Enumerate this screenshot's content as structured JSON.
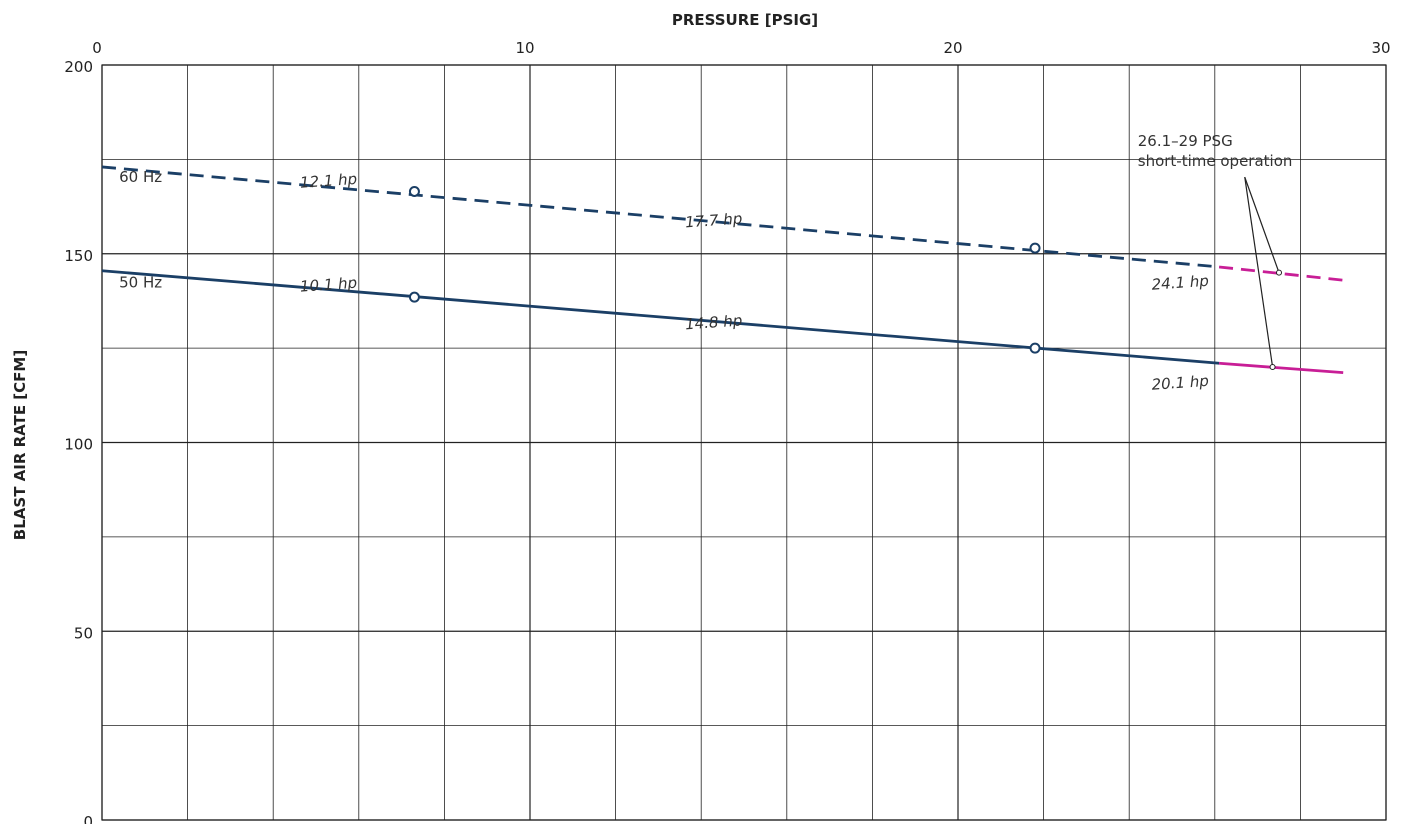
{
  "chart_data": {
    "type": "line",
    "title": "",
    "xlabel": "PRESSURE [PSIG]",
    "ylabel": "BLAST AIR RATE [CFM]",
    "xlim": [
      0,
      30
    ],
    "ylim": [
      0,
      200
    ],
    "x_ticks": [
      0,
      10,
      20,
      30
    ],
    "y_ticks": [
      0,
      50,
      100,
      150,
      200
    ],
    "x_axis_position": "top",
    "grid": true,
    "colors": {
      "primary": "#1b3f66",
      "short_time": "#c81e96",
      "grid": "#222222"
    },
    "series": [
      {
        "name": "60 Hz",
        "style": "dashed",
        "color": "#1b3f66",
        "points": [
          [
            0,
            173
          ],
          [
            26.1,
            146.5
          ]
        ],
        "short_time_points": [
          [
            26.1,
            146.5
          ],
          [
            29,
            143
          ]
        ],
        "markers": [
          [
            7.3,
            166.5
          ],
          [
            21.8,
            151.5
          ]
        ],
        "power_labels": [
          {
            "text": "12.1 hp",
            "x": 5.3,
            "y": 168,
            "rotate": -4
          },
          {
            "text": "17.7 hp",
            "x": 14.3,
            "y": 157.5,
            "rotate": -4
          },
          {
            "text": "24.1 hp",
            "x": 25.2,
            "y": 141,
            "rotate": -4
          }
        ]
      },
      {
        "name": "50 Hz",
        "style": "solid",
        "color": "#1b3f66",
        "points": [
          [
            0,
            145.5
          ],
          [
            26.1,
            121
          ]
        ],
        "short_time_points": [
          [
            26.1,
            121
          ],
          [
            29,
            118.5
          ]
        ],
        "markers": [
          [
            7.3,
            138.5
          ],
          [
            21.8,
            125
          ]
        ],
        "power_labels": [
          {
            "text": "10.1 hp",
            "x": 5.3,
            "y": 140.5,
            "rotate": -4
          },
          {
            "text": "14.8 hp",
            "x": 14.3,
            "y": 130.5,
            "rotate": -4
          },
          {
            "text": "20.1 hp",
            "x": 25.2,
            "y": 114.5,
            "rotate": -4
          }
        ]
      }
    ],
    "series_labels": [
      {
        "text": "60 Hz",
        "x": 0.4,
        "y": 169
      },
      {
        "text": "50 Hz",
        "x": 0.4,
        "y": 141
      }
    ],
    "annotation": {
      "lines": [
        "26.1–29 PSG",
        "short-time operation"
      ],
      "x": 24.2,
      "y": 178.5,
      "arrow_from": [
        26.7,
        170.3
      ],
      "arrow_targets": [
        [
          27.5,
          145
        ],
        [
          27.35,
          120
        ]
      ]
    }
  }
}
